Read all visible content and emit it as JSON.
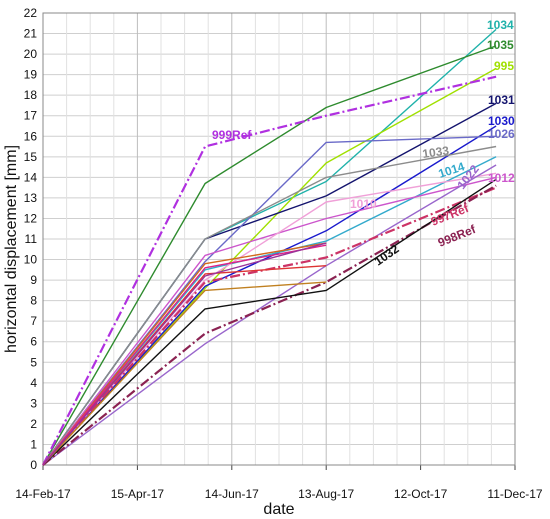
{
  "chart_data": {
    "type": "line",
    "xlabel": "date",
    "ylabel": "horizontal displacement [mm]",
    "x_ticks": [
      "14-Feb-17",
      "15-Apr-17",
      "14-Jun-17",
      "13-Aug-17",
      "12-Oct-17",
      "11-Dec-17"
    ],
    "x_dates": [
      "2017-02-14",
      "2017-04-15",
      "2017-06-14",
      "2017-08-13",
      "2017-10-12",
      "2017-12-11"
    ],
    "x_range": [
      "2017-02-14",
      "2017-12-11"
    ],
    "ylim": [
      0,
      22
    ],
    "y_ticks": [
      0,
      1,
      2,
      3,
      4,
      5,
      6,
      7,
      8,
      9,
      10,
      11,
      12,
      13,
      14,
      15,
      16,
      17,
      18,
      19,
      20,
      21,
      22
    ],
    "grid": true,
    "legend": "labels placed next to series lines",
    "series": [
      {
        "name": "1034",
        "color": "#20b2aa",
        "dash": "solid",
        "x": [
          "2017-02-14",
          "2017-05-28",
          "2017-08-13",
          "2017-11-29"
        ],
        "y": [
          0,
          11.0,
          13.8,
          21.2
        ]
      },
      {
        "name": "1035",
        "color": "#2e8b2e",
        "dash": "solid",
        "x": [
          "2017-02-14",
          "2017-05-28",
          "2017-08-13",
          "2017-11-29"
        ],
        "y": [
          0,
          13.7,
          17.4,
          20.4
        ]
      },
      {
        "name": "995",
        "color": "#a0e000",
        "dash": "solid",
        "x": [
          "2017-02-14",
          "2017-05-28",
          "2017-08-13",
          "2017-11-29"
        ],
        "y": [
          0,
          8.6,
          14.7,
          19.3
        ]
      },
      {
        "name": "999Ref",
        "color": "#b030e0",
        "dash": "dashdot",
        "x": [
          "2017-02-14",
          "2017-05-28",
          "2017-08-13",
          "2017-11-29"
        ],
        "y": [
          0,
          15.5,
          17.0,
          18.9
        ]
      },
      {
        "name": "1031",
        "color": "#14146e",
        "dash": "solid",
        "x": [
          "2017-02-14",
          "2017-05-28",
          "2017-08-13",
          "2017-11-29"
        ],
        "y": [
          0,
          11.0,
          13.1,
          17.6
        ]
      },
      {
        "name": "1030",
        "color": "#1a1acd",
        "dash": "solid",
        "x": [
          "2017-02-14",
          "2017-05-28",
          "2017-08-13",
          "2017-11-29"
        ],
        "y": [
          0,
          8.7,
          11.4,
          16.5
        ]
      },
      {
        "name": "1026",
        "color": "#6a6ac8",
        "dash": "solid",
        "x": [
          "2017-02-14",
          "2017-05-28",
          "2017-08-13",
          "2017-11-29"
        ],
        "y": [
          0,
          9.9,
          15.7,
          16.0
        ]
      },
      {
        "name": "1033",
        "color": "#8c8c8c",
        "dash": "solid",
        "x": [
          "2017-02-14",
          "2017-05-28",
          "2017-08-13",
          "2017-11-29"
        ],
        "y": [
          0,
          11.0,
          14.0,
          15.5
        ]
      },
      {
        "name": "1014",
        "color": "#33aacc",
        "dash": "solid",
        "x": [
          "2017-02-14",
          "2017-05-28",
          "2017-08-13",
          "2017-11-29"
        ],
        "y": [
          0,
          9.5,
          10.9,
          15.0
        ]
      },
      {
        "name": "1012",
        "color": "#cc55cc",
        "dash": "solid",
        "x": [
          "2017-02-14",
          "2017-05-28",
          "2017-08-13",
          "2017-11-29"
        ],
        "y": [
          0,
          10.2,
          12.0,
          14.0
        ]
      },
      {
        "name": "1010",
        "color": "#f0a0d8",
        "dash": "solid",
        "x": [
          "2017-02-14",
          "2017-05-28",
          "2017-08-13",
          "2017-11-29"
        ],
        "y": [
          0,
          9.0,
          12.8,
          14.2
        ]
      },
      {
        "name": "1022",
        "color": "#9966cc",
        "dash": "solid",
        "x": [
          "2017-02-14",
          "2017-05-28",
          "2017-08-13",
          "2017-11-29"
        ],
        "y": [
          0,
          5.9,
          9.7,
          14.6
        ]
      },
      {
        "name": "997Ref",
        "color": "#cc3366",
        "dash": "dashdot",
        "x": [
          "2017-02-14",
          "2017-05-28",
          "2017-08-13",
          "2017-11-29"
        ],
        "y": [
          0,
          8.9,
          10.1,
          13.5
        ]
      },
      {
        "name": "998Ref",
        "color": "#8b2252",
        "dash": "dashdot",
        "x": [
          "2017-02-14",
          "2017-05-28",
          "2017-08-13",
          "2017-11-29"
        ],
        "y": [
          0,
          6.4,
          8.9,
          13.6
        ]
      },
      {
        "name": "1032",
        "color": "#111111",
        "dash": "solid",
        "x": [
          "2017-02-14",
          "2017-05-28",
          "2017-08-13",
          "2017-11-29"
        ],
        "y": [
          0,
          7.6,
          8.5,
          13.9
        ]
      },
      {
        "name": "",
        "color": "#c08020",
        "dash": "solid",
        "x": [
          "2017-02-14",
          "2017-05-28",
          "2017-08-13"
        ],
        "y": [
          0,
          8.5,
          8.9
        ]
      },
      {
        "name": "",
        "color": "#d2691e",
        "dash": "solid",
        "x": [
          "2017-02-14",
          "2017-05-28",
          "2017-08-13"
        ],
        "y": [
          0,
          9.8,
          10.8
        ]
      },
      {
        "name": "",
        "color": "#dd3333",
        "dash": "solid",
        "x": [
          "2017-02-14",
          "2017-05-28",
          "2017-08-13"
        ],
        "y": [
          0,
          9.3,
          9.7
        ]
      },
      {
        "name": "",
        "color": "#dd2288",
        "dash": "solid",
        "x": [
          "2017-02-14",
          "2017-05-28",
          "2017-08-13"
        ],
        "y": [
          0,
          9.6,
          10.7
        ]
      },
      {
        "name": "",
        "color": "#993399",
        "dash": "solid",
        "x": [
          "2017-02-14",
          "2017-05-28",
          "2017-08-13"
        ],
        "y": [
          0,
          9.2,
          10.8
        ]
      }
    ]
  }
}
